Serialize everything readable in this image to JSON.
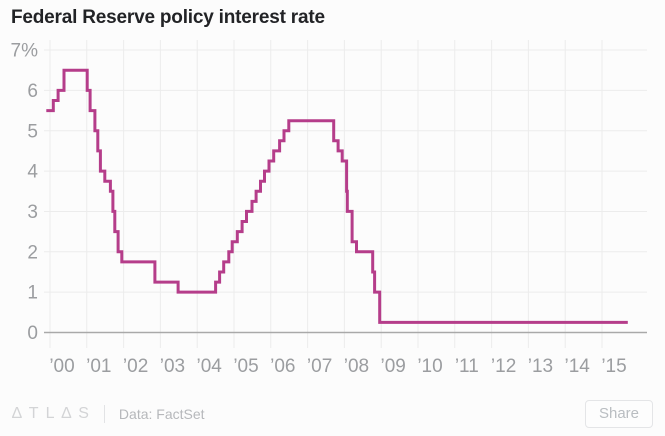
{
  "chart_data": {
    "type": "line",
    "step": "after",
    "title": "Federal Reserve policy interest rate",
    "xlabel": "",
    "ylabel": "",
    "ylim": [
      0,
      7
    ],
    "xlim": [
      1999.9,
      2016.2
    ],
    "grid": true,
    "legend_position": "none",
    "line_color": "#b53d8a",
    "grid_color": "#ececec",
    "zero_axis_color": "#a9a9a9",
    "tick_label_color": "#9b9da0",
    "y_ticks": [
      {
        "value": 0,
        "label": "0"
      },
      {
        "value": 1,
        "label": "1"
      },
      {
        "value": 2,
        "label": "2"
      },
      {
        "value": 3,
        "label": "3"
      },
      {
        "value": 4,
        "label": "4"
      },
      {
        "value": 5,
        "label": "5"
      },
      {
        "value": 6,
        "label": "6"
      },
      {
        "value": 7,
        "label": "7%"
      }
    ],
    "x_ticks": [
      {
        "year": 2000,
        "label": "’00"
      },
      {
        "year": 2001,
        "label": "’01"
      },
      {
        "year": 2002,
        "label": "’02"
      },
      {
        "year": 2003,
        "label": "’03"
      },
      {
        "year": 2004,
        "label": "’04"
      },
      {
        "year": 2005,
        "label": "’05"
      },
      {
        "year": 2006,
        "label": "’06"
      },
      {
        "year": 2007,
        "label": "’07"
      },
      {
        "year": 2008,
        "label": "’08"
      },
      {
        "year": 2009,
        "label": "’09"
      },
      {
        "year": 2010,
        "label": "’10"
      },
      {
        "year": 2011,
        "label": "’11"
      },
      {
        "year": 2012,
        "label": "’12"
      },
      {
        "year": 2013,
        "label": "’13"
      },
      {
        "year": 2014,
        "label": "’14"
      },
      {
        "year": 2015,
        "label": "’15"
      }
    ],
    "series": [
      {
        "points": [
          [
            1999.9,
            5.5
          ],
          [
            2000.09,
            5.75
          ],
          [
            2000.22,
            6.0
          ],
          [
            2000.38,
            6.5
          ],
          [
            2001.01,
            6.0
          ],
          [
            2001.09,
            5.5
          ],
          [
            2001.22,
            5.0
          ],
          [
            2001.3,
            4.5
          ],
          [
            2001.37,
            4.0
          ],
          [
            2001.49,
            3.75
          ],
          [
            2001.64,
            3.5
          ],
          [
            2001.71,
            3.0
          ],
          [
            2001.76,
            2.5
          ],
          [
            2001.85,
            2.0
          ],
          [
            2001.95,
            1.75
          ],
          [
            2002.85,
            1.25
          ],
          [
            2003.48,
            1.0
          ],
          [
            2004.5,
            1.25
          ],
          [
            2004.61,
            1.5
          ],
          [
            2004.72,
            1.75
          ],
          [
            2004.86,
            2.0
          ],
          [
            2004.95,
            2.25
          ],
          [
            2005.09,
            2.5
          ],
          [
            2005.22,
            2.75
          ],
          [
            2005.34,
            3.0
          ],
          [
            2005.49,
            3.25
          ],
          [
            2005.6,
            3.5
          ],
          [
            2005.72,
            3.75
          ],
          [
            2005.83,
            4.0
          ],
          [
            2005.95,
            4.25
          ],
          [
            2006.08,
            4.5
          ],
          [
            2006.24,
            4.75
          ],
          [
            2006.36,
            5.0
          ],
          [
            2006.49,
            5.25
          ],
          [
            2007.71,
            4.75
          ],
          [
            2007.83,
            4.5
          ],
          [
            2007.94,
            4.25
          ],
          [
            2008.06,
            3.5
          ],
          [
            2008.08,
            3.0
          ],
          [
            2008.21,
            2.25
          ],
          [
            2008.33,
            2.0
          ],
          [
            2008.77,
            1.5
          ],
          [
            2008.82,
            1.0
          ],
          [
            2008.96,
            0.25
          ],
          [
            2015.7,
            0.25
          ]
        ]
      }
    ]
  },
  "footer": {
    "logo": "ATLAS",
    "logo_display": "∆TL∆S",
    "source": "Data: FactSet",
    "share_label": "Share"
  }
}
